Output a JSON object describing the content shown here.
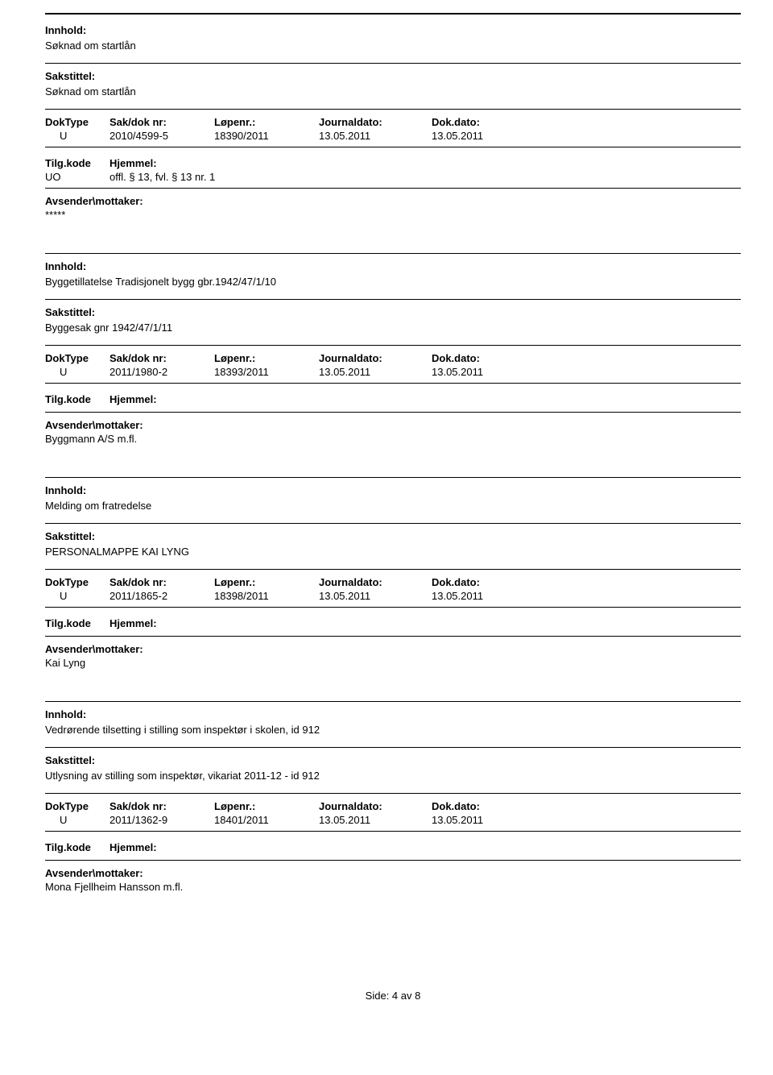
{
  "labels": {
    "innhold": "Innhold:",
    "sakstittel": "Sakstittel:",
    "doktype": "DokType",
    "saknr": "Sak/dok nr:",
    "lopenr": "Løpenr.:",
    "journaldato": "Journaldato:",
    "dokdato": "Dok.dato:",
    "tilgkode": "Tilg.kode",
    "hjemmel": "Hjemmel:",
    "avsender": "Avsender\\mottaker:"
  },
  "records": [
    {
      "innhold": "Søknad om startlån",
      "sakstittel": "Søknad om startlån",
      "doktype": "U",
      "saknr": "2010/4599-5",
      "lopenr": "18390/2011",
      "journaldato": "13.05.2011",
      "dokdato": "13.05.2011",
      "tilgkode": "UO",
      "hjemmel": "offl. § 13, fvl. § 13 nr. 1",
      "avsender": "*****",
      "has_top_rule": true
    },
    {
      "innhold": "Byggetillatelse Tradisjonelt bygg gbr.1942/47/1/10",
      "sakstittel": "Byggesak gnr 1942/47/1/11",
      "doktype": "U",
      "saknr": "2011/1980-2",
      "lopenr": "18393/2011",
      "journaldato": "13.05.2011",
      "dokdato": "13.05.2011",
      "tilgkode": "",
      "hjemmel": "",
      "avsender": "Byggmann A/S m.fl."
    },
    {
      "innhold": "Melding om fratredelse",
      "sakstittel": "PERSONALMAPPE KAI LYNG",
      "doktype": "U",
      "saknr": "2011/1865-2",
      "lopenr": "18398/2011",
      "journaldato": "13.05.2011",
      "dokdato": "13.05.2011",
      "tilgkode": "",
      "hjemmel": "",
      "avsender": "Kai Lyng"
    },
    {
      "innhold": "Vedrørende tilsetting i stilling som inspektør i skolen, id 912",
      "sakstittel": "Utlysning av stilling som inspektør, vikariat 2011-12 - id 912",
      "doktype": "U",
      "saknr": "2011/1362-9",
      "lopenr": "18401/2011",
      "journaldato": "13.05.2011",
      "dokdato": "13.05.2011",
      "tilgkode": "",
      "hjemmel": "",
      "avsender": "Mona Fjellheim Hansson m.fl."
    }
  ],
  "footer": "Side: 4 av 8"
}
